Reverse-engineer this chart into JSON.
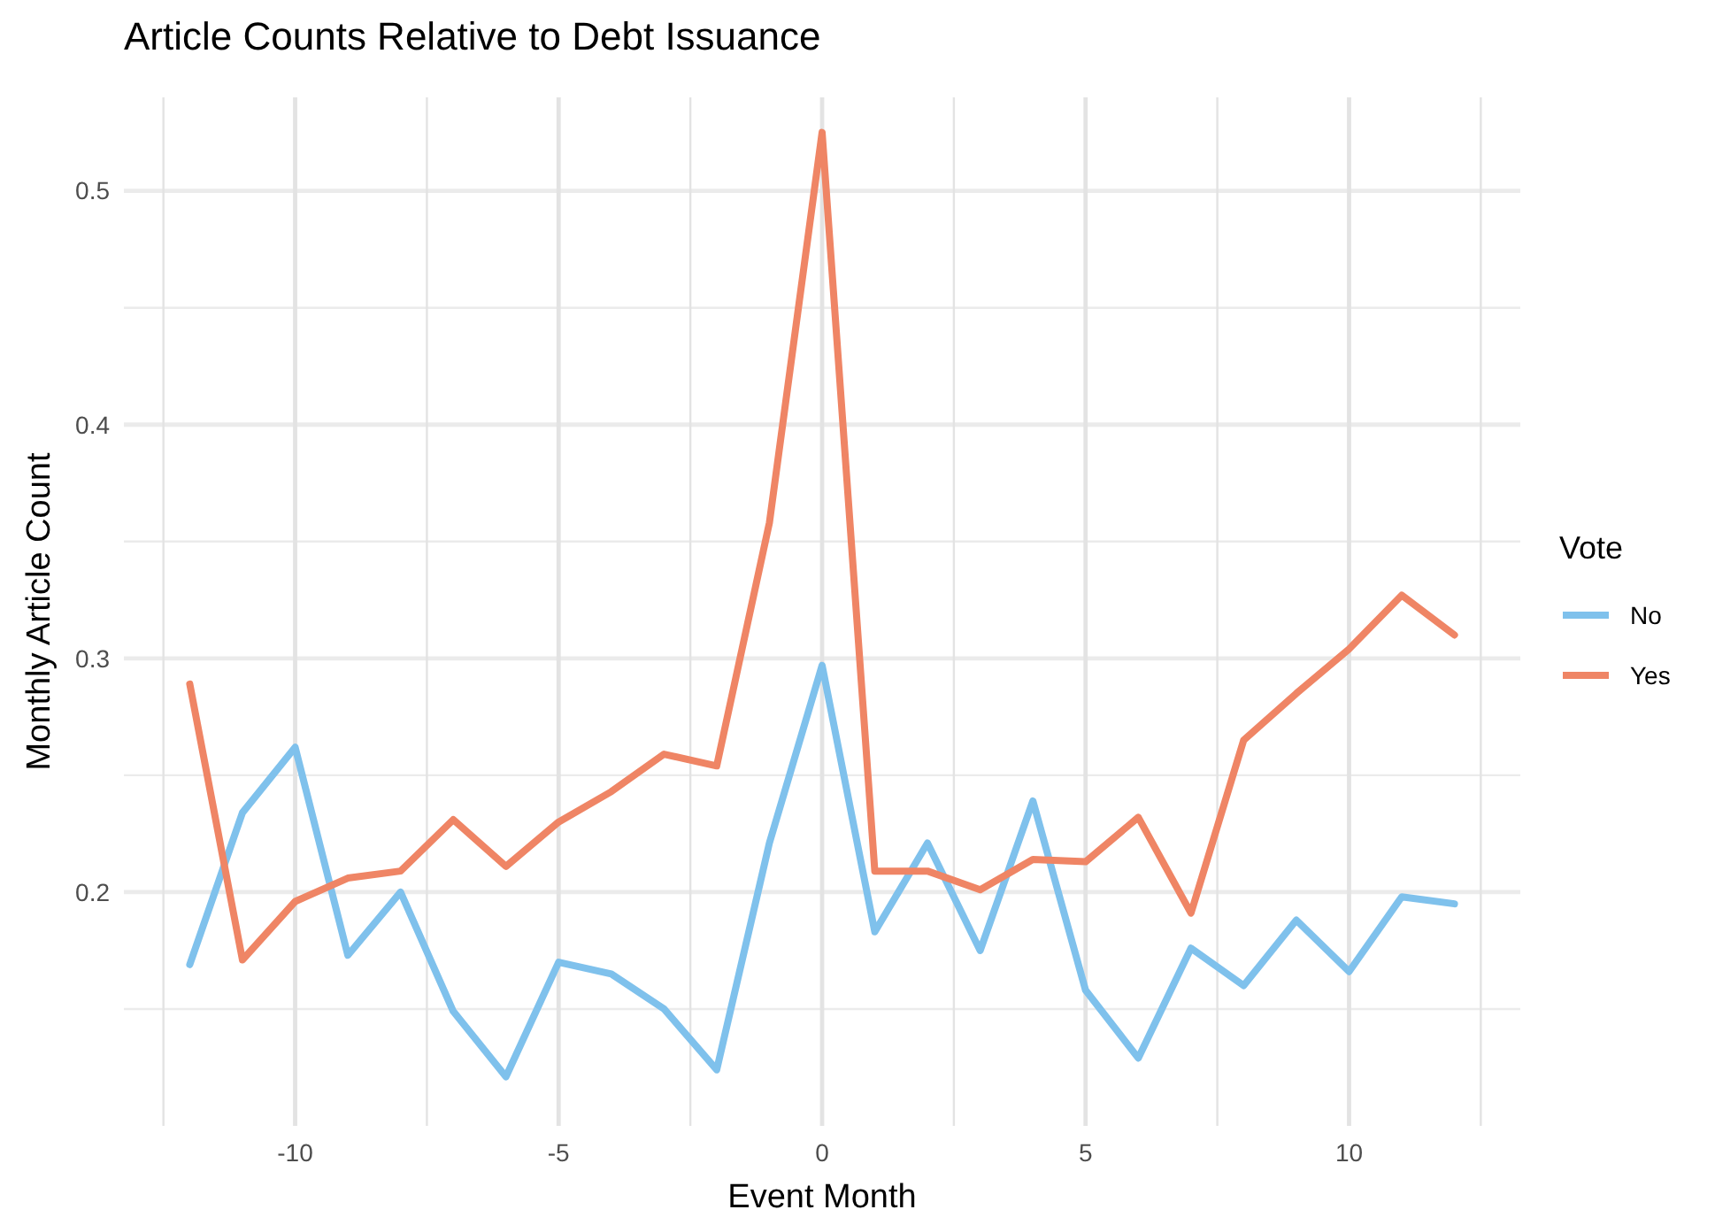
{
  "chart_data": {
    "type": "line",
    "title": "Article Counts Relative to Debt Issuance",
    "xlabel": "Event Month",
    "ylabel": "Monthly Article Count",
    "legend_title": "Vote",
    "legend": "right",
    "grid": true,
    "x": [
      -12,
      -11,
      -10,
      -9,
      -8,
      -7,
      -6,
      -5,
      -4,
      -3,
      -2,
      -1,
      0,
      1,
      2,
      3,
      4,
      5,
      6,
      7,
      8,
      9,
      10,
      11,
      12
    ],
    "xlim": [
      -13.25,
      13.25
    ],
    "ylim": [
      0.1,
      0.54
    ],
    "xticks": [
      {
        "value": -12.5,
        "label": null
      },
      -10,
      {
        "value": -7.5,
        "label": null
      },
      -5,
      {
        "value": -2.5,
        "label": null
      },
      0,
      {
        "value": 2.5,
        "label": null
      },
      5,
      {
        "value": 7.5,
        "label": null
      },
      10,
      {
        "value": 12.5,
        "label": null
      }
    ],
    "yticks": [
      {
        "value": 0.15,
        "label": null
      },
      0.2,
      {
        "value": 0.25,
        "label": null
      },
      0.3,
      {
        "value": 0.35,
        "label": null
      },
      0.4,
      {
        "value": 0.45,
        "label": null
      },
      0.5
    ],
    "series": [
      {
        "name": "No",
        "color": "#7fc1ec",
        "values": [
          0.169,
          0.234,
          0.262,
          0.173,
          0.2,
          0.149,
          0.121,
          0.17,
          0.165,
          0.15,
          0.124,
          0.221,
          0.297,
          0.183,
          0.221,
          0.175,
          0.239,
          0.158,
          0.129,
          0.176,
          0.16,
          0.188,
          0.166,
          0.198,
          0.195
        ]
      },
      {
        "name": "Yes",
        "color": "#ef8565",
        "values": [
          0.289,
          0.171,
          0.196,
          0.206,
          0.209,
          0.231,
          0.211,
          0.23,
          0.243,
          0.259,
          0.254,
          0.358,
          0.525,
          0.209,
          0.209,
          0.201,
          0.214,
          0.213,
          0.232,
          0.191,
          0.265,
          0.285,
          0.304,
          0.327,
          0.31
        ]
      }
    ]
  }
}
